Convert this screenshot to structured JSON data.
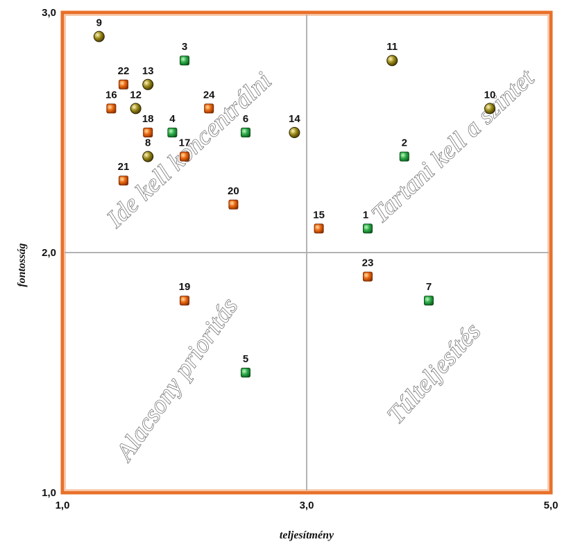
{
  "chart_data": {
    "type": "scatter",
    "title": "",
    "xlabel": "teljesítmény",
    "ylabel": "fontosság",
    "xlim": [
      1,
      5
    ],
    "ylim": [
      1,
      3
    ],
    "x_ticks": [
      "1,0",
      "3,0",
      "5,0"
    ],
    "y_ticks": [
      "1,0",
      "2,0",
      "3,0"
    ],
    "x_tick_values": [
      1,
      3,
      5
    ],
    "y_tick_values": [
      1,
      2,
      3
    ],
    "divider": {
      "x": 3,
      "y": 2
    },
    "colors": {
      "frame": "#E8702A",
      "divider": "#b3b3b3",
      "green": "#2db04a",
      "orange": "#ef6a10",
      "olive": "#9c8a18"
    },
    "quadrant_labels": {
      "top_left": "Ide kell koncentrálni",
      "top_right": "Tartani kell a szintet",
      "bottom_left": "Alacsony prioritás",
      "bottom_right": "Túlteljesítés"
    },
    "points": [
      {
        "label": "1",
        "x": 3.5,
        "y": 2.1,
        "color": "green"
      },
      {
        "label": "2",
        "x": 3.8,
        "y": 2.4,
        "color": "green"
      },
      {
        "label": "3",
        "x": 2.0,
        "y": 2.8,
        "color": "green"
      },
      {
        "label": "4",
        "x": 1.9,
        "y": 2.5,
        "color": "green"
      },
      {
        "label": "5",
        "x": 2.5,
        "y": 1.5,
        "color": "green"
      },
      {
        "label": "6",
        "x": 2.5,
        "y": 2.5,
        "color": "green"
      },
      {
        "label": "7",
        "x": 4.0,
        "y": 1.8,
        "color": "green"
      },
      {
        "label": "8",
        "x": 1.7,
        "y": 2.4,
        "color": "olive"
      },
      {
        "label": "9",
        "x": 1.3,
        "y": 2.9,
        "color": "olive"
      },
      {
        "label": "10",
        "x": 4.5,
        "y": 2.6,
        "color": "olive"
      },
      {
        "label": "11",
        "x": 3.7,
        "y": 2.8,
        "color": "olive"
      },
      {
        "label": "12",
        "x": 1.6,
        "y": 2.6,
        "color": "olive"
      },
      {
        "label": "13",
        "x": 1.7,
        "y": 2.7,
        "color": "olive"
      },
      {
        "label": "14",
        "x": 2.9,
        "y": 2.5,
        "color": "olive"
      },
      {
        "label": "15",
        "x": 3.1,
        "y": 2.1,
        "color": "orange"
      },
      {
        "label": "16",
        "x": 1.4,
        "y": 2.6,
        "color": "orange"
      },
      {
        "label": "17",
        "x": 2.0,
        "y": 2.4,
        "color": "orange"
      },
      {
        "label": "18",
        "x": 1.7,
        "y": 2.5,
        "color": "orange"
      },
      {
        "label": "19",
        "x": 2.0,
        "y": 1.8,
        "color": "orange"
      },
      {
        "label": "20",
        "x": 2.4,
        "y": 2.2,
        "color": "orange"
      },
      {
        "label": "21",
        "x": 1.5,
        "y": 2.3,
        "color": "orange"
      },
      {
        "label": "22",
        "x": 1.5,
        "y": 2.7,
        "color": "orange"
      },
      {
        "label": "23",
        "x": 3.5,
        "y": 1.9,
        "color": "orange"
      },
      {
        "label": "24",
        "x": 2.2,
        "y": 2.6,
        "color": "orange"
      }
    ]
  }
}
